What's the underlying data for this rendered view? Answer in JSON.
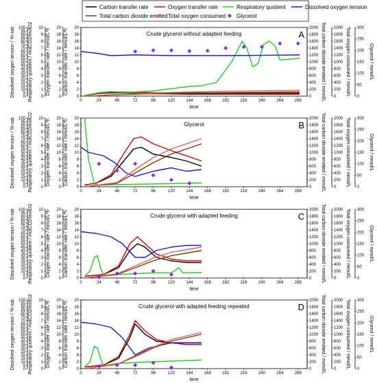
{
  "legend": {
    "items": [
      {
        "label": "Carbon transfer rate",
        "color": "#000000",
        "marker": "none"
      },
      {
        "label": "Oxygen transfer rate",
        "color": "#d00000",
        "marker": "none"
      },
      {
        "label": "Respiratory quotient",
        "color": "#22cc22",
        "marker": "none"
      },
      {
        "label": "Dissolved oxygen tension",
        "color": "#1a1acc",
        "marker": "none"
      },
      {
        "label": "Total carbon dioxide emitted",
        "color": "#7a3b0a",
        "marker": "none"
      },
      {
        "label": "Total oxygen consumed",
        "color": "#e06060",
        "marker": "none"
      },
      {
        "label": "Glycerol",
        "color": "#8a2be2",
        "marker": "diamond"
      }
    ]
  },
  "axes": {
    "time_label": "time",
    "do_label": "Dissolved oxygen tension / %-sat.",
    "rq_label": "Respiratory quotient / molCO2/molO2",
    "otr_label": "Oxygen transfer rate / mmol/L*h",
    "ctr_label": "Carbon transfer rate / mmol/L*h",
    "tco2_label": "Total carbon dioxide emitted / mmol/L",
    "to2_label": "Total oxygen consumed / mmol/L",
    "gly_label": "Glycerol / mmol/L"
  },
  "chart_data": [
    {
      "type": "line",
      "panel": "A",
      "title": "Crude glycerol without adapted feeding",
      "xlabel": "time",
      "xlim": [
        0,
        300
      ],
      "xticks": [
        0,
        24,
        48,
        72,
        96,
        120,
        144,
        168,
        192,
        216,
        240,
        264,
        288
      ],
      "ylim_left": [
        0,
        20
      ],
      "ylim_tco2": [
        0,
        2000
      ],
      "ylim_gly": [
        0,
        300
      ],
      "series": [
        {
          "name": "Carbon transfer rate",
          "axis": "left",
          "color": "#000000",
          "x": [
            5,
            24,
            48,
            72,
            96,
            144,
            192,
            240,
            290
          ],
          "y": [
            0.2,
            0.8,
            1.0,
            0.9,
            0.7,
            0.6,
            0.6,
            0.6,
            0.6
          ]
        },
        {
          "name": "Oxygen transfer rate",
          "axis": "left",
          "color": "#d00000",
          "x": [
            5,
            24,
            48,
            72,
            96,
            144,
            192,
            240,
            290
          ],
          "y": [
            0.2,
            0.9,
            1.2,
            1.1,
            1.0,
            0.9,
            0.9,
            0.9,
            0.9
          ]
        },
        {
          "name": "Respiratory quotient",
          "axis": "left",
          "color": "#22cc22",
          "x": [
            5,
            24,
            40,
            60,
            96,
            144,
            160,
            180,
            200,
            214,
            220,
            228,
            235,
            242,
            250,
            258,
            264,
            290
          ],
          "y": [
            0.2,
            1.0,
            1.3,
            1.0,
            1.5,
            2.8,
            3.0,
            4.0,
            10.0,
            16.0,
            14.0,
            8.5,
            9.5,
            15.0,
            16.0,
            14.5,
            10.5,
            11.0
          ]
        },
        {
          "name": "Dissolved oxygen tension",
          "axis": "left",
          "color": "#1a1acc",
          "x": [
            0,
            20,
            40,
            72,
            120,
            200,
            290
          ],
          "y": [
            13.0,
            12.5,
            11.8,
            12.0,
            11.8,
            11.8,
            12.0
          ]
        },
        {
          "name": "Total carbon dioxide emitted",
          "axis": "tco2",
          "color": "#7a3b0a",
          "x": [
            5,
            48,
            96,
            144,
            192,
            240,
            290
          ],
          "y": [
            0,
            40,
            70,
            90,
            100,
            110,
            120
          ]
        },
        {
          "name": "Total oxygen consumed",
          "axis": "tco2",
          "color": "#e06060",
          "x": [
            5,
            48,
            96,
            144,
            192,
            240,
            290
          ],
          "y": [
            0,
            50,
            90,
            120,
            140,
            155,
            170
          ]
        },
        {
          "name": "Glycerol",
          "axis": "gly",
          "color": "#8a2be2",
          "markers_only": true,
          "x": [
            72,
            96,
            120,
            144,
            168,
            192,
            216,
            240,
            264,
            288
          ],
          "y": [
            195,
            200,
            200,
            197,
            198,
            210,
            215,
            215,
            230,
            230
          ]
        }
      ]
    },
    {
      "type": "line",
      "panel": "B",
      "title": "Glycerol",
      "xlabel": "time",
      "xlim": [
        0,
        300
      ],
      "xticks": [
        0,
        24,
        48,
        72,
        96,
        120,
        144,
        168,
        192,
        216,
        240,
        264,
        288
      ],
      "ylim_left": [
        0,
        20
      ],
      "ylim_tco2": [
        0,
        2000
      ],
      "ylim_gly": [
        0,
        300
      ],
      "series": [
        {
          "name": "Carbon transfer rate",
          "axis": "left",
          "color": "#000000",
          "x": [
            5,
            20,
            40,
            55,
            70,
            80,
            96,
            120,
            140,
            160
          ],
          "y": [
            0.5,
            1.0,
            3.0,
            7.0,
            11.0,
            11.5,
            9.5,
            8.5,
            7.5,
            6.0
          ]
        },
        {
          "name": "Oxygen transfer rate",
          "axis": "left",
          "color": "#d00000",
          "x": [
            5,
            20,
            40,
            55,
            70,
            80,
            96,
            120,
            140,
            160
          ],
          "y": [
            0.5,
            1.0,
            3.5,
            9.0,
            14.0,
            14.5,
            12.5,
            10.5,
            9.0,
            7.5
          ]
        },
        {
          "name": "Respiratory quotient",
          "axis": "left",
          "color": "#22cc22",
          "x": [
            5,
            10,
            18,
            24,
            40,
            72,
            120,
            160
          ],
          "y": [
            20.0,
            8.0,
            0.8,
            0.5,
            0.6,
            0.7,
            0.9,
            1.1
          ]
        },
        {
          "name": "Dissolved oxygen tension",
          "axis": "left",
          "color": "#1a1acc",
          "x": [
            0,
            10,
            30,
            45,
            60,
            72,
            96,
            120,
            140,
            160
          ],
          "y": [
            11.5,
            10.0,
            9.0,
            7.0,
            4.0,
            3.0,
            4.5,
            5.5,
            4.5,
            5.0
          ]
        },
        {
          "name": "Total carbon dioxide emitted",
          "axis": "tco2",
          "color": "#7a3b0a",
          "x": [
            5,
            48,
            72,
            96,
            120,
            160
          ],
          "y": [
            0,
            100,
            400,
            700,
            950,
            1250
          ]
        },
        {
          "name": "Total oxygen consumed",
          "axis": "tco2",
          "color": "#e06060",
          "x": [
            5,
            48,
            72,
            96,
            120,
            160
          ],
          "y": [
            0,
            120,
            500,
            850,
            1100,
            1400
          ]
        },
        {
          "name": "Glycerol",
          "axis": "gly",
          "color": "#8a2be2",
          "markers_only": true,
          "x": [
            24,
            48,
            72,
            96,
            120,
            144
          ],
          "y": [
            100,
            70,
            100,
            50,
            30,
            15
          ]
        }
      ]
    },
    {
      "type": "line",
      "panel": "C",
      "title": "Crude glycerol with adapted feeding",
      "xlabel": "time",
      "xlim": [
        0,
        300
      ],
      "xticks": [
        0,
        24,
        48,
        72,
        96,
        120,
        144,
        168,
        192,
        216,
        240,
        264,
        288
      ],
      "ylim_left": [
        0,
        20
      ],
      "ylim_tco2": [
        0,
        2000
      ],
      "ylim_gly": [
        0,
        300
      ],
      "series": [
        {
          "name": "Carbon transfer rate",
          "axis": "left",
          "color": "#000000",
          "x": [
            5,
            30,
            50,
            65,
            75,
            85,
            100,
            120,
            140,
            160
          ],
          "y": [
            0.5,
            1.0,
            3.0,
            8.0,
            10.0,
            9.0,
            6.0,
            5.0,
            4.5,
            4.5
          ]
        },
        {
          "name": "Oxygen transfer rate",
          "axis": "left",
          "color": "#d00000",
          "x": [
            5,
            30,
            50,
            65,
            75,
            85,
            100,
            120,
            140,
            160
          ],
          "y": [
            0.5,
            1.0,
            3.5,
            10.0,
            12.0,
            10.0,
            7.0,
            5.5,
            5.0,
            5.0
          ]
        },
        {
          "name": "Respiratory quotient",
          "axis": "left",
          "color": "#22cc22",
          "x": [
            5,
            12,
            18,
            22,
            26,
            30,
            48,
            96,
            120,
            130,
            135,
            140,
            160
          ],
          "y": [
            0.5,
            2.0,
            6.0,
            6.5,
            3.0,
            0.8,
            1.0,
            1.5,
            1.5,
            3.0,
            1.5,
            1.5,
            1.6
          ]
        },
        {
          "name": "Dissolved oxygen tension",
          "axis": "left",
          "color": "#1a1acc",
          "x": [
            0,
            20,
            40,
            55,
            72,
            85,
            100,
            120,
            140,
            160
          ],
          "y": [
            13.5,
            13.0,
            12.0,
            10.0,
            6.0,
            6.0,
            8.0,
            9.0,
            9.5,
            9.5
          ]
        },
        {
          "name": "Total carbon dioxide emitted",
          "axis": "tco2",
          "color": "#7a3b0a",
          "x": [
            5,
            48,
            72,
            96,
            120,
            160
          ],
          "y": [
            0,
            100,
            300,
            500,
            650,
            800
          ]
        },
        {
          "name": "Total oxygen consumed",
          "axis": "tco2",
          "color": "#e06060",
          "x": [
            5,
            48,
            72,
            96,
            120,
            160
          ],
          "y": [
            0,
            120,
            350,
            580,
            750,
            900
          ]
        },
        {
          "name": "Glycerol",
          "axis": "gly",
          "color": "#8a2be2",
          "markers_only": true,
          "x": [
            24,
            48,
            72,
            96,
            120
          ],
          "y": [
            5,
            20,
            20,
            30,
            15
          ]
        }
      ]
    },
    {
      "type": "line",
      "panel": "D",
      "title": "Crude glycerol with adapted feeding repeated",
      "xlabel": "time",
      "xlim": [
        0,
        300
      ],
      "xticks": [
        0,
        24,
        48,
        72,
        96,
        120,
        144,
        168,
        192,
        216,
        240,
        264,
        288
      ],
      "ylim_left": [
        0,
        20
      ],
      "ylim_tco2": [
        0,
        2000
      ],
      "ylim_gly": [
        0,
        300
      ],
      "series": [
        {
          "name": "Carbon transfer rate",
          "axis": "left",
          "color": "#000000",
          "x": [
            5,
            30,
            50,
            65,
            72,
            85,
            100,
            120,
            140,
            160
          ],
          "y": [
            0.5,
            1.0,
            3.0,
            9.0,
            13.0,
            10.0,
            8.0,
            7.5,
            7.5,
            7.5
          ]
        },
        {
          "name": "Oxygen transfer rate",
          "axis": "left",
          "color": "#d00000",
          "x": [
            5,
            30,
            50,
            65,
            72,
            85,
            100,
            120,
            140,
            160
          ],
          "y": [
            0.5,
            1.0,
            3.5,
            10.0,
            14.0,
            11.0,
            8.5,
            7.5,
            7.0,
            7.0
          ]
        },
        {
          "name": "Respiratory quotient",
          "axis": "left",
          "color": "#22cc22",
          "x": [
            5,
            12,
            18,
            22,
            26,
            30,
            48,
            96,
            160
          ],
          "y": [
            0.5,
            2.0,
            6.5,
            6.0,
            3.0,
            0.8,
            1.5,
            2.0,
            2.5
          ]
        },
        {
          "name": "Dissolved oxygen tension",
          "axis": "left",
          "color": "#1a1acc",
          "x": [
            0,
            20,
            40,
            55,
            72,
            90,
            120,
            160
          ],
          "y": [
            13.5,
            13.0,
            12.0,
            9.0,
            4.0,
            6.0,
            7.5,
            7.5
          ]
        },
        {
          "name": "Total carbon dioxide emitted",
          "axis": "tco2",
          "color": "#7a3b0a",
          "x": [
            5,
            48,
            72,
            96,
            120,
            160
          ],
          "y": [
            0,
            120,
            350,
            600,
            800,
            1000
          ]
        },
        {
          "name": "Total oxygen consumed",
          "axis": "tco2",
          "color": "#e06060",
          "x": [
            5,
            48,
            72,
            96,
            120,
            160
          ],
          "y": [
            0,
            120,
            380,
            620,
            850,
            1050
          ]
        },
        {
          "name": "Glycerol",
          "axis": "gly",
          "color": "#8a2be2",
          "markers_only": true,
          "x": [
            24,
            48,
            72,
            96,
            120
          ],
          "y": [
            10,
            15,
            15,
            25,
            5
          ]
        }
      ]
    }
  ]
}
